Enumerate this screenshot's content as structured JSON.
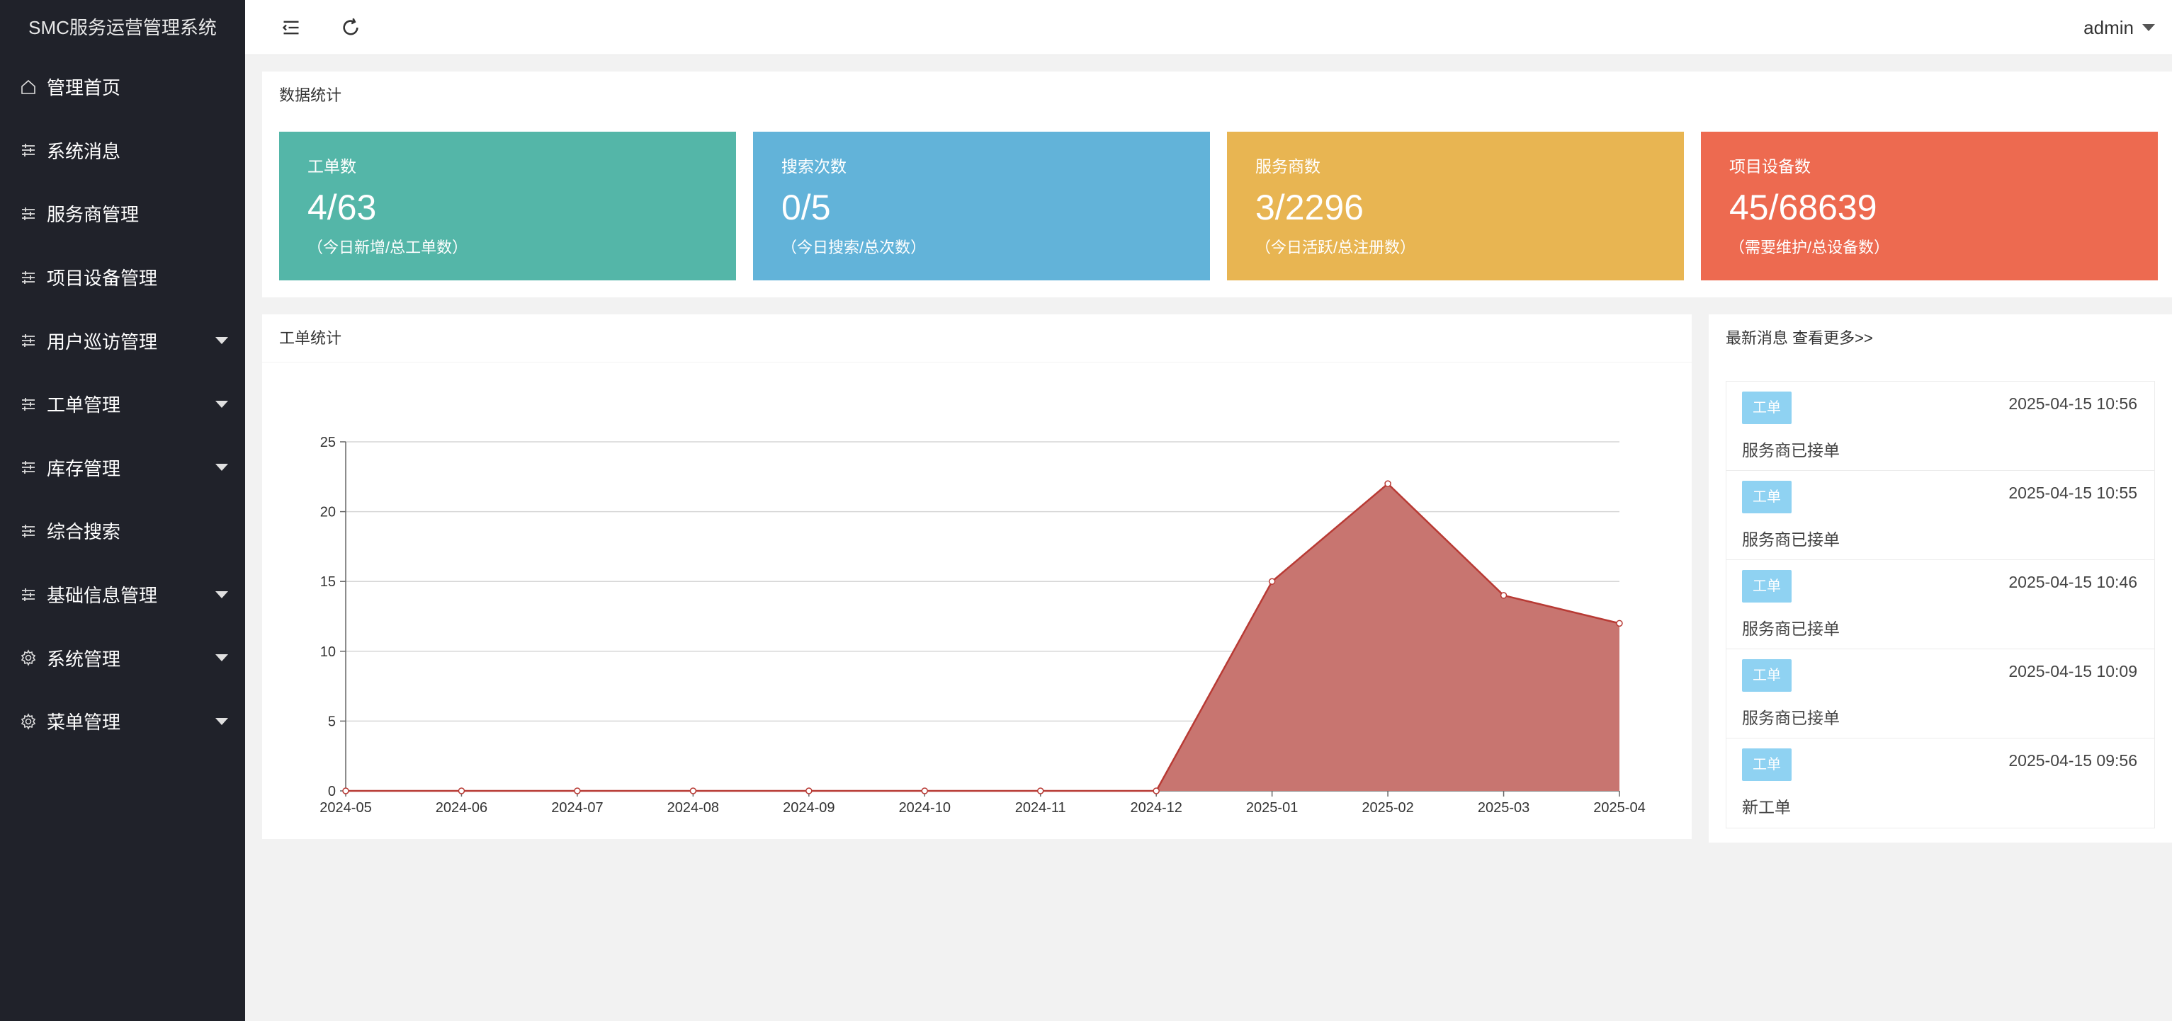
{
  "app": {
    "title": "SMC服务运营管理系统"
  },
  "sidebar": {
    "items": [
      {
        "label": "管理首页",
        "icon": "home-icon",
        "has_caret": false
      },
      {
        "label": "系统消息",
        "icon": "sliders-icon",
        "has_caret": false
      },
      {
        "label": "服务商管理",
        "icon": "sliders-icon",
        "has_caret": false
      },
      {
        "label": "项目设备管理",
        "icon": "sliders-icon",
        "has_caret": false
      },
      {
        "label": "用户巡访管理",
        "icon": "sliders-icon",
        "has_caret": true
      },
      {
        "label": "工单管理",
        "icon": "sliders-icon",
        "has_caret": true
      },
      {
        "label": "库存管理",
        "icon": "sliders-icon",
        "has_caret": true
      },
      {
        "label": "综合搜索",
        "icon": "sliders-icon",
        "has_caret": false
      },
      {
        "label": "基础信息管理",
        "icon": "sliders-icon",
        "has_caret": true
      },
      {
        "label": "系统管理",
        "icon": "gear-icon",
        "has_caret": true
      },
      {
        "label": "菜单管理",
        "icon": "gear-icon",
        "has_caret": true
      }
    ]
  },
  "header": {
    "user": "admin",
    "menu_toggle_icon": "menu-toggle-icon",
    "refresh_icon": "refresh-icon"
  },
  "stats": {
    "title": "数据统计",
    "cards": [
      {
        "label": "工单数",
        "value": "4/63",
        "desc": "（今日新增/总工单数）",
        "color": "#54b6a8"
      },
      {
        "label": "搜索次数",
        "value": "0/5",
        "desc": "（今日搜索/总次数）",
        "color": "#62b3d9"
      },
      {
        "label": "服务商数",
        "value": "3/2296",
        "desc": "（今日活跃/总注册数）",
        "color": "#e8b552"
      },
      {
        "label": "项目设备数",
        "value": "45/68639",
        "desc": "（需要维护/总设备数）",
        "color": "#ed6a50"
      }
    ]
  },
  "chart_panel": {
    "title": "工单统计"
  },
  "chart_data": {
    "type": "area",
    "title": "",
    "xlabel": "",
    "ylabel": "",
    "categories": [
      "2024-05",
      "2024-06",
      "2024-07",
      "2024-08",
      "2024-09",
      "2024-10",
      "2024-11",
      "2024-12",
      "2025-01",
      "2025-02",
      "2025-03",
      "2025-04"
    ],
    "series": [
      {
        "values": [
          0,
          0,
          0,
          0,
          0,
          0,
          0,
          0,
          15,
          22,
          14,
          12
        ]
      }
    ],
    "ylim": [
      0,
      25
    ],
    "yticks": [
      0,
      5,
      10,
      15,
      20,
      25
    ],
    "grid": true,
    "fill_color": "#c87570",
    "line_color": "#b83a34"
  },
  "news": {
    "title": "最新消息 查看更多>>",
    "items": [
      {
        "badge": "工单",
        "time": "2025-04-15 10:56",
        "text": "服务商已接单"
      },
      {
        "badge": "工单",
        "time": "2025-04-15 10:55",
        "text": "服务商已接单"
      },
      {
        "badge": "工单",
        "time": "2025-04-15 10:46",
        "text": "服务商已接单"
      },
      {
        "badge": "工单",
        "time": "2025-04-15 10:09",
        "text": "服务商已接单"
      },
      {
        "badge": "工单",
        "time": "2025-04-15 09:56",
        "text": "新工单"
      }
    ]
  }
}
